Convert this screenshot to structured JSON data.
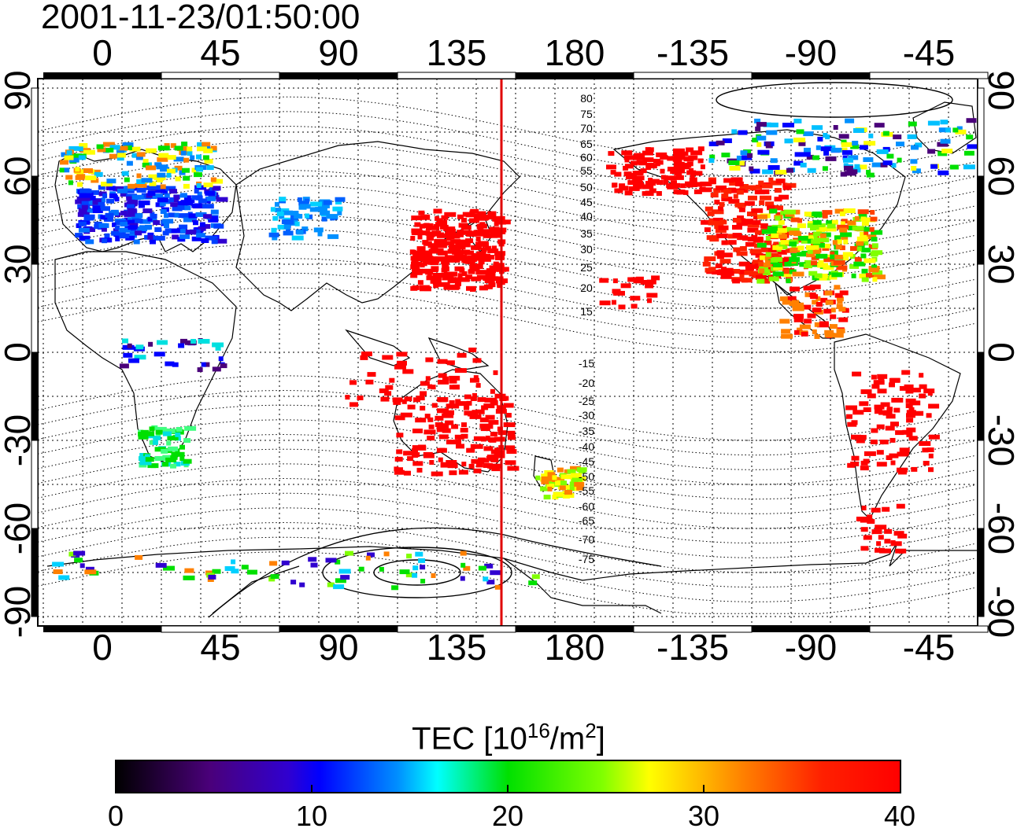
{
  "title": "2001-11-23/01:50:00",
  "map": {
    "lon_ticks": [
      "0",
      "45",
      "90",
      "135",
      "180",
      "-135",
      "-90",
      "-45"
    ],
    "lat_ticks": [
      "90",
      "60",
      "30",
      "0",
      "-30",
      "-60",
      "-90"
    ],
    "contour_labels": [
      "80",
      "75",
      "70",
      "65",
      "60",
      "55",
      "50",
      "45",
      "40",
      "35",
      "30",
      "25",
      "20",
      "15",
      "-15",
      "-20",
      "-25",
      "-30",
      "-35",
      "-40",
      "-45",
      "-50",
      "-55",
      "-60",
      "-65",
      "-70",
      "-75"
    ],
    "terminator_color": "#e00000"
  },
  "colorbar": {
    "title_main": "TEC  [10",
    "title_exp": "16",
    "title_unit": "/m",
    "title_exp2": "2",
    "title_end": "]",
    "ticks": [
      "0",
      "10",
      "20",
      "30",
      "40"
    ],
    "colors": [
      "#000000",
      "#5a00b0",
      "#0000ff",
      "#00ffff",
      "#00e000",
      "#ffff00",
      "#ff8000",
      "#ff0000"
    ]
  }
}
